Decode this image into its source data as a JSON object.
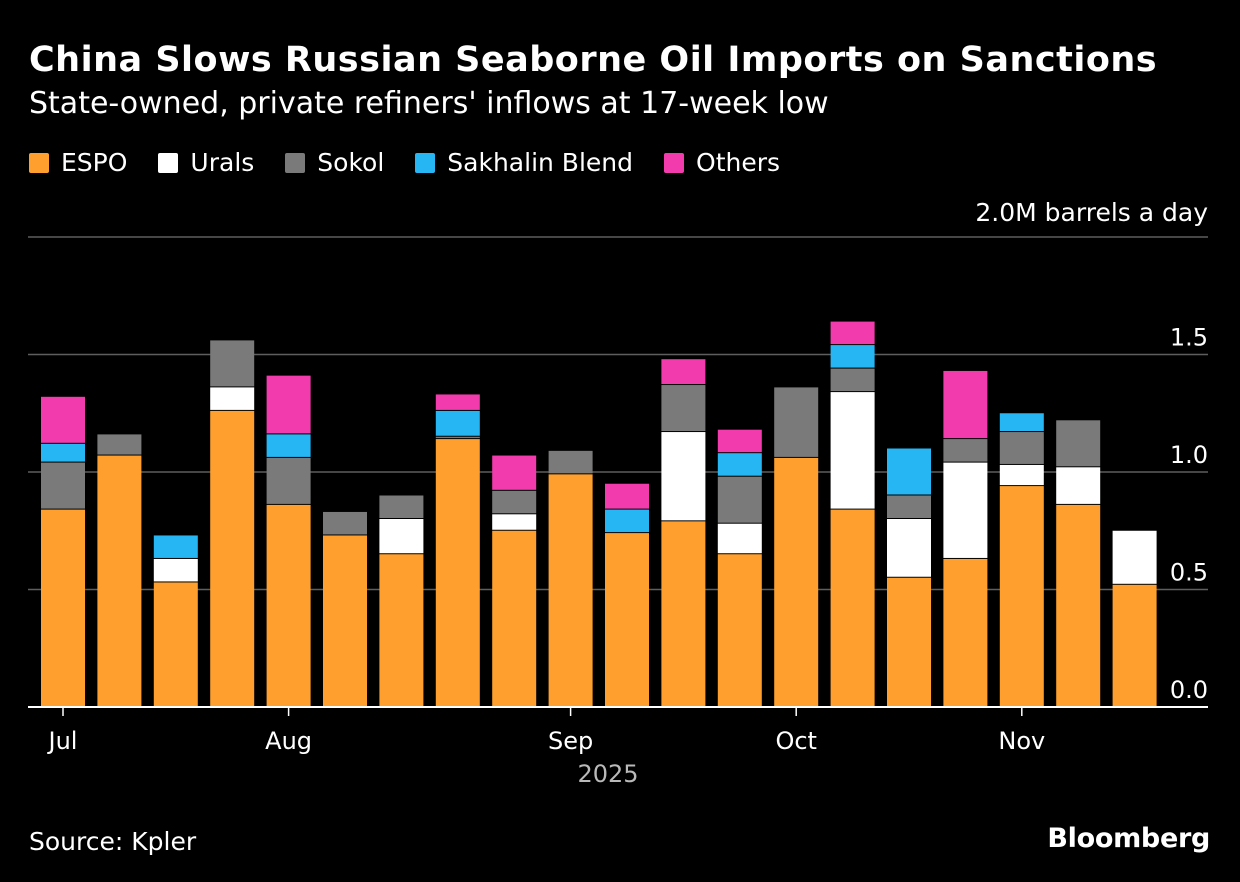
{
  "header": {
    "title": "China Slows Russian Seaborne Oil Imports on Sanctions",
    "subtitle": "State-owned, private refiners' inflows at 17-week low"
  },
  "footer": {
    "source": "Source: Kpler",
    "brand": "Bloomberg"
  },
  "chart_data": {
    "type": "bar",
    "stacked": true,
    "title": "China Slows Russian Seaborne Oil Imports on Sanctions",
    "subtitle": "State-owned, private refiners' inflows at 17-week low",
    "unit_label": "2.0M barrels a day",
    "ylim": [
      0,
      2.0
    ],
    "y_ticks": [
      "0.0",
      "0.5",
      "1.0",
      "1.5"
    ],
    "y_tick_values": [
      0,
      0.5,
      1.0,
      1.5
    ],
    "x_tick_labels": [
      {
        "label": "Jul",
        "week_index": 0
      },
      {
        "label": "Aug",
        "week_index": 4
      },
      {
        "label": "Sep",
        "week_index": 9
      },
      {
        "label": "Oct",
        "week_index": 13
      },
      {
        "label": "Nov",
        "week_index": 17
      }
    ],
    "x_axis_year": "2025",
    "legend_position": "top-left",
    "week_count": 20,
    "series": [
      {
        "name": "ESPO",
        "color": "#ffa02e",
        "values": [
          0.84,
          1.07,
          0.53,
          1.26,
          0.86,
          0.73,
          0.65,
          1.14,
          0.75,
          0.99,
          0.74,
          0.79,
          0.65,
          1.06,
          0.84,
          0.55,
          0.63,
          0.94,
          0.86,
          0.52
        ]
      },
      {
        "name": "Urals",
        "color": "#ffffff",
        "values": [
          0,
          0,
          0.1,
          0.1,
          0,
          0,
          0.15,
          0,
          0.07,
          0,
          0,
          0.38,
          0.13,
          0,
          0.5,
          0.25,
          0.41,
          0.09,
          0.16,
          0.23
        ]
      },
      {
        "name": "Sokol",
        "color": "#7a7a7a",
        "values": [
          0.2,
          0.09,
          0,
          0.2,
          0.2,
          0.1,
          0.1,
          0.01,
          0.1,
          0.1,
          0,
          0.2,
          0.2,
          0.3,
          0.1,
          0.1,
          0.1,
          0.14,
          0.2,
          0
        ]
      },
      {
        "name": "Sakhalin Blend",
        "color": "#26b6f4",
        "values": [
          0.08,
          0,
          0.1,
          0,
          0.1,
          0,
          0,
          0.11,
          0,
          0,
          0.1,
          0,
          0.1,
          0,
          0.1,
          0.2,
          0,
          0.08,
          0,
          0
        ]
      },
      {
        "name": "Others",
        "color": "#f23cae",
        "values": [
          0.2,
          0,
          0,
          0,
          0.25,
          0,
          0,
          0.07,
          0.15,
          0,
          0.11,
          0.11,
          0.1,
          0,
          0.1,
          0,
          0.29,
          0,
          0,
          0
        ]
      }
    ]
  }
}
